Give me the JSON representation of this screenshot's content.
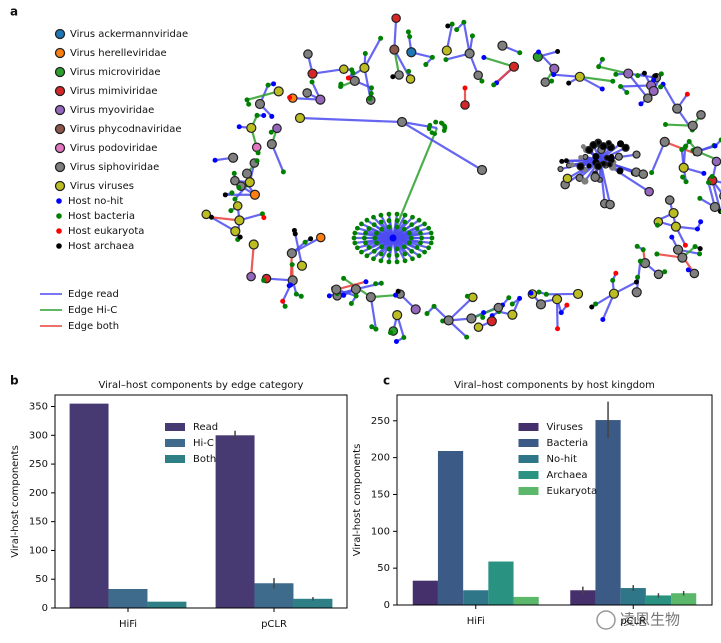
{
  "panel_labels": [
    "a",
    "b",
    "c"
  ],
  "network": {
    "virus_legend": [
      {
        "label": "Virus ackermannviridae",
        "color": "#1f77b4"
      },
      {
        "label": "Virus herelleviridae",
        "color": "#ff7f0e"
      },
      {
        "label": "Virus microviridae",
        "color": "#2ca02c"
      },
      {
        "label": "Virus mimiviridae",
        "color": "#d62728"
      },
      {
        "label": "Virus myoviridae",
        "color": "#9467bd"
      },
      {
        "label": "Virus phycodnaviridae",
        "color": "#8c564b"
      },
      {
        "label": "Virus podoviridae",
        "color": "#e377c2"
      },
      {
        "label": "Virus siphoviridae",
        "color": "#7f7f7f"
      },
      {
        "label": "Virus viruses",
        "color": "#bcbd22"
      }
    ],
    "host_legend": [
      {
        "label": "Host no-hit",
        "color": "#0000ff"
      },
      {
        "label": "Host bacteria",
        "color": "#008000"
      },
      {
        "label": "Host eukaryota",
        "color": "#ff0000"
      },
      {
        "label": "Host archaea",
        "color": "#000000"
      }
    ],
    "edge_legend": [
      {
        "label": "Edge read",
        "color": "#4b4bf0"
      },
      {
        "label": "Edge Hi-C",
        "color": "#2ca02c"
      },
      {
        "label": "Edge both",
        "color": "#e8403c"
      }
    ]
  },
  "chart_data": [
    {
      "type": "bar",
      "title": "Viral–host components by edge category",
      "ylabel": "Viral-host components",
      "categories": [
        "HiFi",
        "pCLR"
      ],
      "series": [
        {
          "name": "Read",
          "color": "#473a73",
          "values": [
            355,
            300
          ],
          "errors": [
            null,
            8
          ]
        },
        {
          "name": "Hi-C",
          "color": "#3e6a8c",
          "values": [
            33,
            43
          ],
          "errors": [
            null,
            9
          ]
        },
        {
          "name": "Both",
          "color": "#2e7f86",
          "values": [
            11,
            16
          ],
          "errors": [
            null,
            3
          ]
        }
      ],
      "ylim": [
        0,
        370
      ],
      "yticks": [
        0,
        50,
        100,
        150,
        200,
        250,
        300,
        350
      ],
      "legend": "upper center"
    },
    {
      "type": "bar",
      "title": "Viral–host components by host kingdom",
      "ylabel": "Viral-host components",
      "categories": [
        "HiFi",
        "pCLR"
      ],
      "series": [
        {
          "name": "Viruses",
          "color": "#45306b",
          "values": [
            33,
            20
          ],
          "errors": [
            null,
            5
          ]
        },
        {
          "name": "Bacteria",
          "color": "#3b5a86",
          "values": [
            209,
            251
          ],
          "errors": [
            null,
            25
          ]
        },
        {
          "name": "No-hit",
          "color": "#2e7688",
          "values": [
            20,
            23
          ],
          "errors": [
            null,
            4
          ]
        },
        {
          "name": "Archaea",
          "color": "#2a9281",
          "values": [
            59,
            13
          ],
          "errors": [
            null,
            3
          ]
        },
        {
          "name": "Eukaryota",
          "color": "#5bb86b",
          "values": [
            11,
            16
          ],
          "errors": [
            null,
            3
          ]
        }
      ],
      "ylim": [
        0,
        285
      ],
      "yticks": [
        0,
        50,
        100,
        150,
        200,
        250
      ],
      "legend": "upper center"
    }
  ],
  "watermark": "凌恩生物"
}
